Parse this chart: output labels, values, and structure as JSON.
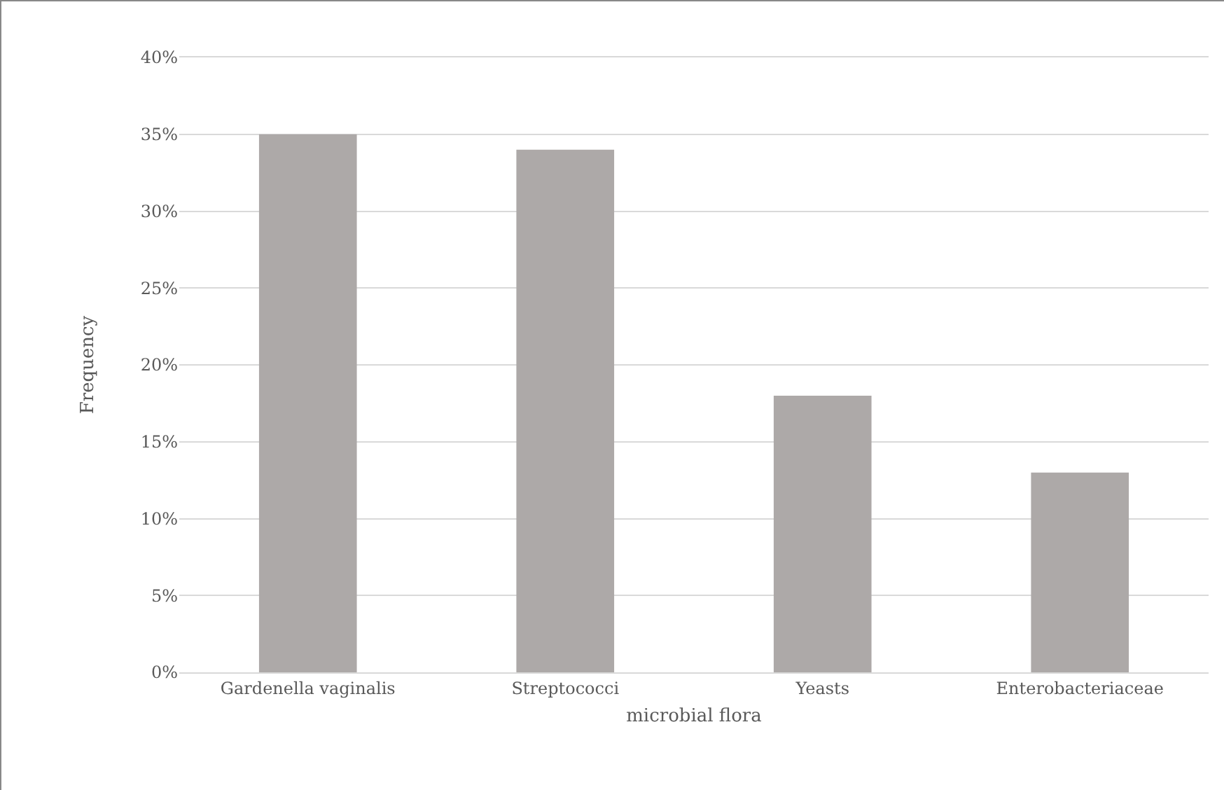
{
  "chart_data": {
    "type": "bar",
    "xlabel": "microbial flora",
    "ylabel": "Frequency",
    "categories": [
      "Gardenella vaginalis",
      "Streptococci",
      "Yeasts",
      "Enterobacteriaceae"
    ],
    "values": [
      35,
      34,
      18,
      13
    ],
    "color": "#ada9a8",
    "ylim": [
      0,
      40
    ],
    "yticks": [
      {
        "value": 0,
        "label": "0%"
      },
      {
        "value": 5,
        "label": "5%"
      },
      {
        "value": 10,
        "label": "10%"
      },
      {
        "value": 15,
        "label": "15%"
      },
      {
        "value": 20,
        "label": "20%"
      },
      {
        "value": 25,
        "label": "25%"
      },
      {
        "value": 30,
        "label": "30%"
      },
      {
        "value": 35,
        "label": "35%"
      },
      {
        "value": 40,
        "label": "40%"
      }
    ],
    "grid": "y"
  }
}
